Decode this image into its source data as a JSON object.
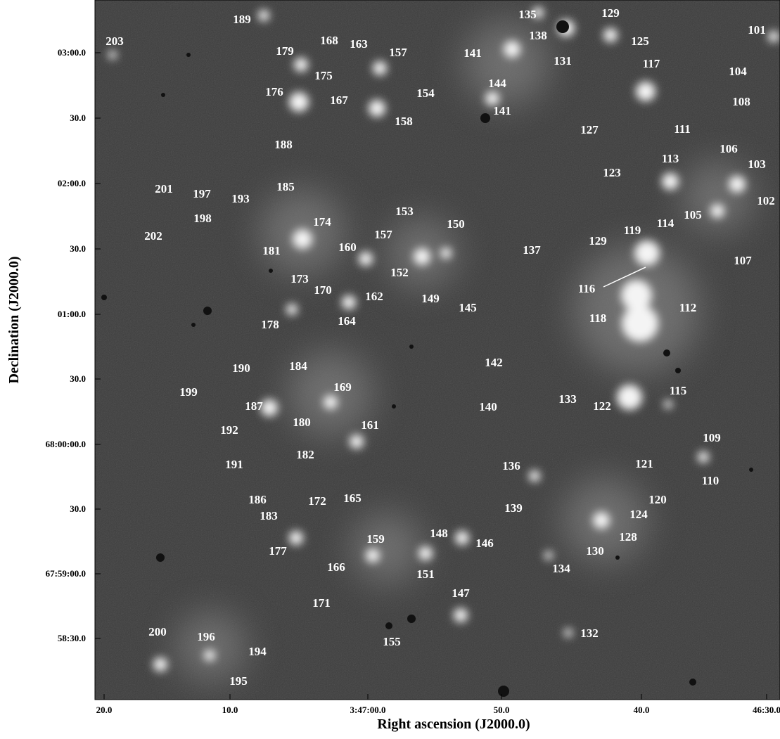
{
  "axes": {
    "x_label": "Right ascension (J2000.0)",
    "y_label": "Declination (J2000.0)",
    "x_ticks": [
      "20.0",
      "10.0",
      "3:47:00.0",
      "50.0",
      "40.0",
      "46:30.0"
    ],
    "y_ticks": [
      "03:00.0",
      "30.0",
      "02:00.0",
      "30.0",
      "01:00.0",
      "30.0",
      "68:00:00.0",
      "30.0",
      "67:59:00.0",
      "58:30.0"
    ]
  },
  "sources": [
    "189",
    "135",
    "129",
    "101",
    "203",
    "168",
    "163",
    "157",
    "179",
    "138",
    "141",
    "131",
    "125",
    "175",
    "117",
    "104",
    "176",
    "167",
    "154",
    "144",
    "158",
    "141",
    "108",
    "127",
    "111",
    "106",
    "188",
    "113",
    "123",
    "103",
    "201",
    "197",
    "185",
    "193",
    "102",
    "105",
    "198",
    "202",
    "174",
    "153",
    "150",
    "157",
    "119",
    "114",
    "129",
    "181",
    "160",
    "137",
    "107",
    "152",
    "173",
    "116",
    "170",
    "162",
    "149",
    "145",
    "112",
    "118",
    "178",
    "164",
    "142",
    "190",
    "184",
    "169",
    "199",
    "140",
    "133",
    "122",
    "115",
    "187",
    "180",
    "161",
    "192",
    "109",
    "182",
    "191",
    "121",
    "136",
    "110",
    "186",
    "165",
    "172",
    "120",
    "183",
    "139",
    "124",
    "177",
    "128",
    "146",
    "148",
    "159",
    "130",
    "166",
    "151",
    "134",
    "147",
    "171",
    "200",
    "196",
    "155",
    "132",
    "194",
    "195"
  ]
}
